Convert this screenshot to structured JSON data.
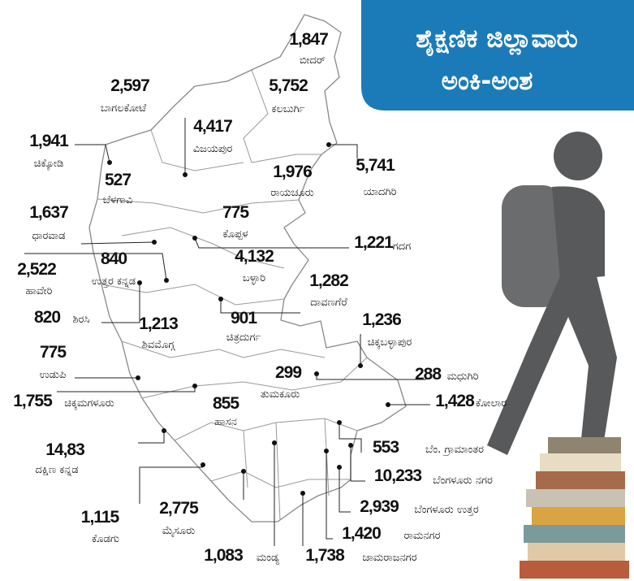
{
  "header": {
    "title_line1": "ಶೈಕ್ಷಣಿಕ ಜಿಲ್ಲಾವಾರು",
    "title_line2": "ಅಂಕಿ-ಅಂಶ"
  },
  "districts": [
    {
      "name": "ಬೀದರ್",
      "value": "1,847"
    },
    {
      "name": "ಬಾಗಲಕೋಟೆ",
      "value": "2,597"
    },
    {
      "name": "ಕಲಬುರ್ಗಿ",
      "value": "5,752"
    },
    {
      "name": "ವಿಜಯಪುರ",
      "value": "4,417"
    },
    {
      "name": "ಚಿಕ್ಕೋಡಿ",
      "value": "1,941"
    },
    {
      "name": "ಯಾದಗಿರಿ",
      "value": "5,741"
    },
    {
      "name": "ರಾಯಚೂರು",
      "value": "1,976"
    },
    {
      "name": "ಬೆಳಗಾವಿ",
      "value": "527"
    },
    {
      "name": "ಧಾರವಾಡ",
      "value": "1,637"
    },
    {
      "name": "ಕೊಪ್ಪಳ",
      "value": "775"
    },
    {
      "name": "ಗದಗ",
      "value": "1,221"
    },
    {
      "name": "ಉತ್ತರ ಕನ್ನಡ",
      "value": "840"
    },
    {
      "name": "ಹಾವೇರಿ",
      "value": "2,522"
    },
    {
      "name": "ಬಳ್ಳಾರಿ",
      "value": "4,132"
    },
    {
      "name": "ದಾವಣಗೆರೆ",
      "value": "1,282"
    },
    {
      "name": "ಶಿರಸಿ",
      "value": "820"
    },
    {
      "name": "ಶಿವಮೊಗ್ಗ",
      "value": "1,213"
    },
    {
      "name": "ಚಿತ್ರದುರ್ಗ",
      "value": "901"
    },
    {
      "name": "ಚಿಕ್ಕಬಳ್ಳಾಪುರ",
      "value": "1,236"
    },
    {
      "name": "ಉಡುಪಿ",
      "value": "775"
    },
    {
      "name": "ತುಮಕೂರು",
      "value": "299"
    },
    {
      "name": "ಮಧುಗಿರಿ",
      "value": "288"
    },
    {
      "name": "ಚಿಕ್ಕಮಗಳೂರು",
      "value": "1,755"
    },
    {
      "name": "ಕೋಲಾರ",
      "value": "1,428"
    },
    {
      "name": "ಹಾಸನ",
      "value": "855"
    },
    {
      "name": "ದಕ್ಷಿಣ ಕನ್ನಡ",
      "value": "14,83"
    },
    {
      "name": "ಬೆಂ. ಗ್ರಾಮಾಂತರ",
      "value": "553"
    },
    {
      "name": "ಬೆಂಗಳೂರು ನಗರ",
      "value": "10,233"
    },
    {
      "name": "ಬೆಂಗಳೂರು ಉತ್ತರ",
      "value": "2,939"
    },
    {
      "name": "ಕೊಡಗು",
      "value": "1,115"
    },
    {
      "name": "ಮೈಸೂರು",
      "value": "2,775"
    },
    {
      "name": "ರಾಮನಗರ",
      "value": "1,420"
    },
    {
      "name": "ಮಂಡ್ಯ",
      "value": "1,083"
    },
    {
      "name": "ಚಾಮರಾಜನಗರ",
      "value": "1,738"
    }
  ]
}
